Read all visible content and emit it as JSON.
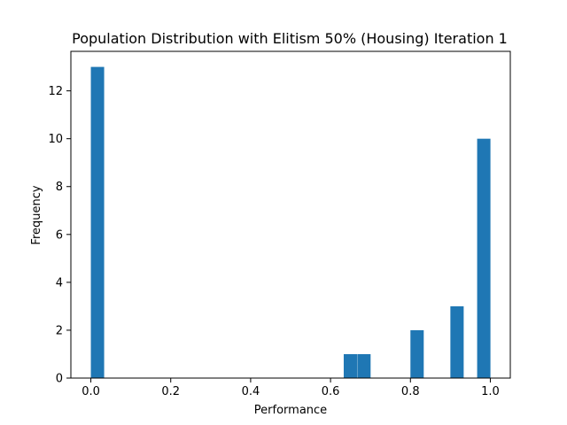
{
  "chart_data": {
    "type": "bar",
    "title": "Population Distribution with Elitism 50% (Housing) Iteration 1",
    "xlabel": "Performance",
    "ylabel": "Frequency",
    "xlim": [
      -0.05,
      1.05
    ],
    "ylim": [
      0,
      13.65
    ],
    "xticks": [
      0.0,
      0.2,
      0.4,
      0.6,
      0.8,
      1.0
    ],
    "xtick_labels": [
      "0.0",
      "0.2",
      "0.4",
      "0.6",
      "0.8",
      "1.0"
    ],
    "yticks": [
      0,
      2,
      4,
      6,
      8,
      10,
      12
    ],
    "ytick_labels": [
      "0",
      "2",
      "4",
      "6",
      "8",
      "10",
      "12"
    ],
    "bin_width": 0.0333,
    "bars": [
      {
        "x0": 0.0,
        "value": 13
      },
      {
        "x0": 0.633,
        "value": 1
      },
      {
        "x0": 0.667,
        "value": 1
      },
      {
        "x0": 0.8,
        "value": 2
      },
      {
        "x0": 0.9,
        "value": 3
      },
      {
        "x0": 0.967,
        "value": 10
      }
    ],
    "grid": false,
    "bar_color": "#1f77b4"
  }
}
